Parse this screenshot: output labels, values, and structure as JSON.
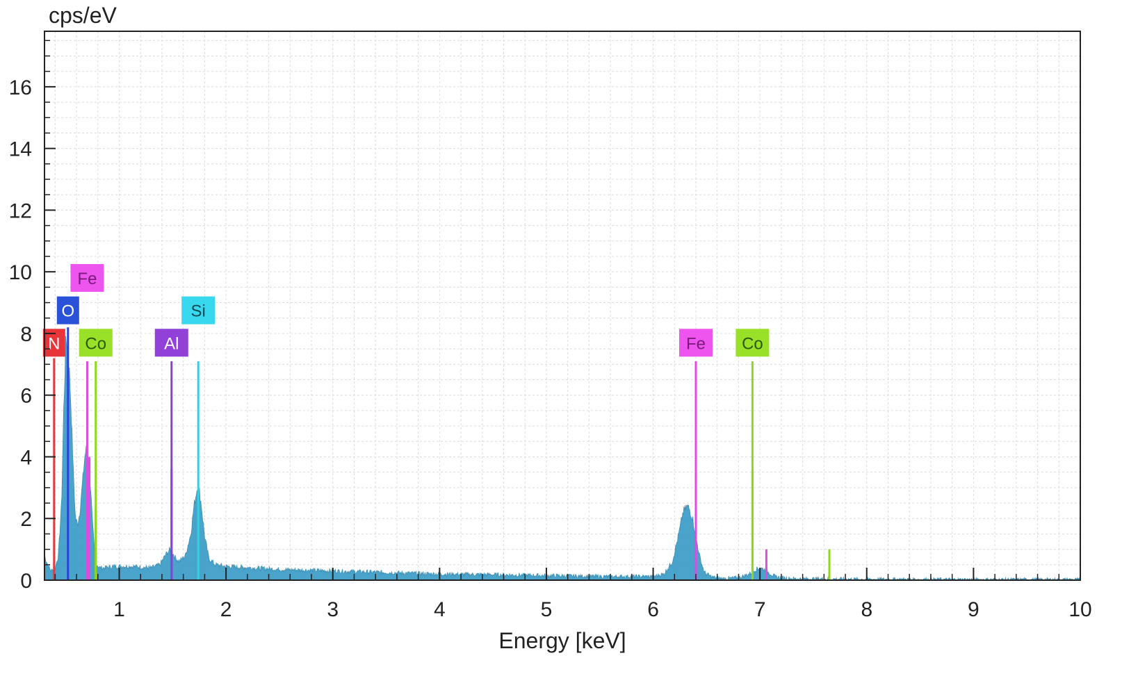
{
  "chart_data": {
    "type": "area",
    "ylabel": "cps/eV",
    "xlabel": "Energy [keV]",
    "xlim": [
      0.3,
      10
    ],
    "ylim": [
      0,
      17.8
    ],
    "xticks": [
      1,
      2,
      3,
      4,
      5,
      6,
      7,
      8,
      9,
      10
    ],
    "yticks": [
      0,
      2,
      4,
      6,
      8,
      10,
      12,
      14,
      16
    ],
    "grid": true,
    "spectrum_color": "#3b9cc6",
    "spectrum": {
      "x": [
        0.3,
        0.33,
        0.36,
        0.4,
        0.43,
        0.46,
        0.48,
        0.5,
        0.52,
        0.53,
        0.55,
        0.57,
        0.59,
        0.61,
        0.63,
        0.66,
        0.68,
        0.7,
        0.71,
        0.73,
        0.75,
        0.77,
        0.79,
        0.82,
        0.86,
        0.95,
        1.1,
        1.3,
        1.38,
        1.44,
        1.48,
        1.52,
        1.56,
        1.62,
        1.67,
        1.7,
        1.73,
        1.75,
        1.77,
        1.8,
        1.84,
        1.9,
        2.0,
        2.5,
        3.0,
        3.5,
        4.0,
        4.5,
        5.0,
        5.5,
        6.0,
        6.1,
        6.18,
        6.24,
        6.28,
        6.32,
        6.34,
        6.37,
        6.4,
        6.44,
        6.48,
        6.55,
        6.65,
        6.8,
        6.9,
        6.96,
        7.0,
        7.04,
        7.08,
        7.15,
        7.3,
        7.6,
        8.0,
        9.0,
        10.0
      ],
      "y": [
        0.8,
        0.5,
        0.3,
        0.4,
        0.8,
        2.5,
        5.5,
        7.8,
        7.6,
        7.0,
        5.5,
        3.5,
        2.0,
        1.8,
        2.2,
        3.3,
        4.1,
        4.3,
        4.0,
        3.1,
        1.8,
        0.9,
        0.5,
        0.4,
        0.4,
        0.45,
        0.45,
        0.4,
        0.5,
        0.85,
        1.0,
        0.75,
        0.6,
        0.8,
        1.5,
        2.4,
        3.0,
        2.9,
        2.4,
        1.4,
        0.7,
        0.5,
        0.45,
        0.35,
        0.3,
        0.25,
        0.2,
        0.18,
        0.15,
        0.12,
        0.12,
        0.2,
        0.6,
        1.5,
        2.2,
        2.4,
        2.3,
        2.0,
        1.4,
        0.7,
        0.25,
        0.1,
        0.05,
        0.08,
        0.2,
        0.35,
        0.4,
        0.35,
        0.25,
        0.1,
        0.05,
        0.04,
        0.03,
        0.02,
        0.02
      ]
    },
    "peak_lines": [
      {
        "element": "N",
        "energy": 0.39,
        "height": 7.2,
        "color": "#e03c3c",
        "label_color": "#e8353a",
        "text_color": "#ffffff",
        "label_y": 7.7
      },
      {
        "element": "O",
        "energy": 0.52,
        "height": 8.2,
        "color": "#2a44d8",
        "label_color": "#2a52d8",
        "text_color": "#ffffff",
        "label_y": 8.75
      },
      {
        "element": "Fe",
        "energy": 0.7,
        "height": 7.1,
        "color": "#e04ae0",
        "label_color": "#ee55ee",
        "text_color": "#7a1a7a",
        "label_y": 9.8
      },
      {
        "element": "Co",
        "energy": 0.78,
        "height": 7.1,
        "color": "#8fd61e",
        "label_color": "#99e028",
        "text_color": "#2a5a00",
        "label_y": 7.7
      },
      {
        "element": "Al",
        "energy": 1.49,
        "height": 7.1,
        "color": "#8a40d8",
        "label_color": "#9140d8",
        "text_color": "#ffffff",
        "label_y": 7.7
      },
      {
        "element": "Si",
        "energy": 1.74,
        "height": 7.1,
        "color": "#35cfe0",
        "label_color": "#38d8ee",
        "text_color": "#0a4a55",
        "label_y": 8.75
      },
      {
        "element": "Fe",
        "energy": 6.4,
        "height": 7.1,
        "color": "#e04ae0",
        "label_color": "#ee55ee",
        "text_color": "#7a1a7a",
        "label_y": 7.7
      },
      {
        "element": "Co",
        "energy": 6.93,
        "height": 7.1,
        "color": "#8fd61e",
        "label_color": "#99e028",
        "text_color": "#2a5a00",
        "label_y": 7.7
      }
    ],
    "minor_lines": [
      {
        "energy": 0.72,
        "height": 4.0,
        "color": "#e04ae0"
      },
      {
        "energy": 0.78,
        "height": 2.3,
        "color": "#8fd61e"
      },
      {
        "energy": 1.49,
        "height": 3.6,
        "color": "#8a40d8"
      },
      {
        "energy": 6.4,
        "height": 3.6,
        "color": "#e04ae0"
      },
      {
        "energy": 6.93,
        "height": 3.6,
        "color": "#8fd61e"
      },
      {
        "energy": 7.06,
        "height": 1.0,
        "color": "#e04ae0"
      },
      {
        "energy": 7.65,
        "height": 1.0,
        "color": "#8fd61e"
      }
    ]
  }
}
